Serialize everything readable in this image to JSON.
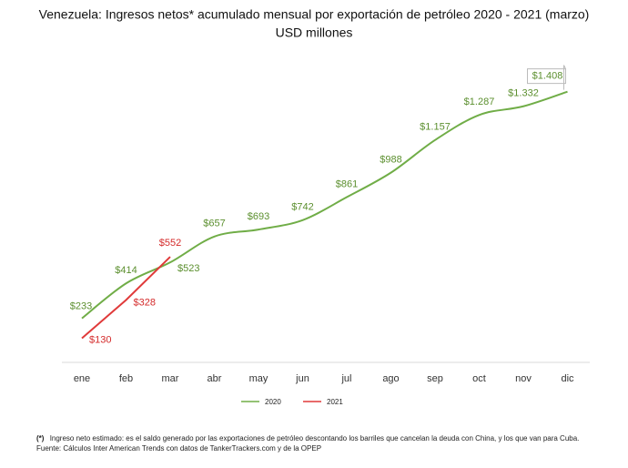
{
  "chart_data": {
    "type": "line",
    "title": "Venezuela: Ingresos netos* acumulado mensual  por exportación de petróleo 2020 - 2021  (marzo)",
    "subtitle": "USD millones",
    "categories": [
      "ene",
      "feb",
      "mar",
      "abr",
      "may",
      "jun",
      "jul",
      "ago",
      "sep",
      "oct",
      "nov",
      "dic"
    ],
    "series": [
      {
        "name": "2020",
        "color": "#70ad47",
        "values": [
          233,
          414,
          523,
          657,
          693,
          742,
          861,
          988,
          1157,
          1287,
          1332,
          1408
        ],
        "value_labels": [
          "$233",
          "$414",
          "$523",
          "$657",
          "$693",
          "$742",
          "$861",
          "$988",
          "$1.157",
          "$1.287",
          "$1.332",
          "$1.408"
        ]
      },
      {
        "name": "2021",
        "color": "#e03a3a",
        "values": [
          130,
          328,
          552,
          null,
          null,
          null,
          null,
          null,
          null,
          null,
          null,
          null
        ],
        "value_labels": [
          "$130",
          "$328",
          "$552",
          null,
          null,
          null,
          null,
          null,
          null,
          null,
          null,
          null
        ]
      }
    ],
    "legend": "bottom",
    "footnote_mark": "(*)",
    "footnote": "Ingreso neto estimado: es el saldo generado por las exportaciones de petróleo descontando los barriles que cancelan la deuda con China, y los que van para Cuba.",
    "source": "Fuente:  Cálculos Inter American Trends con datos de TankerTrackers.com y de la OPEP"
  }
}
